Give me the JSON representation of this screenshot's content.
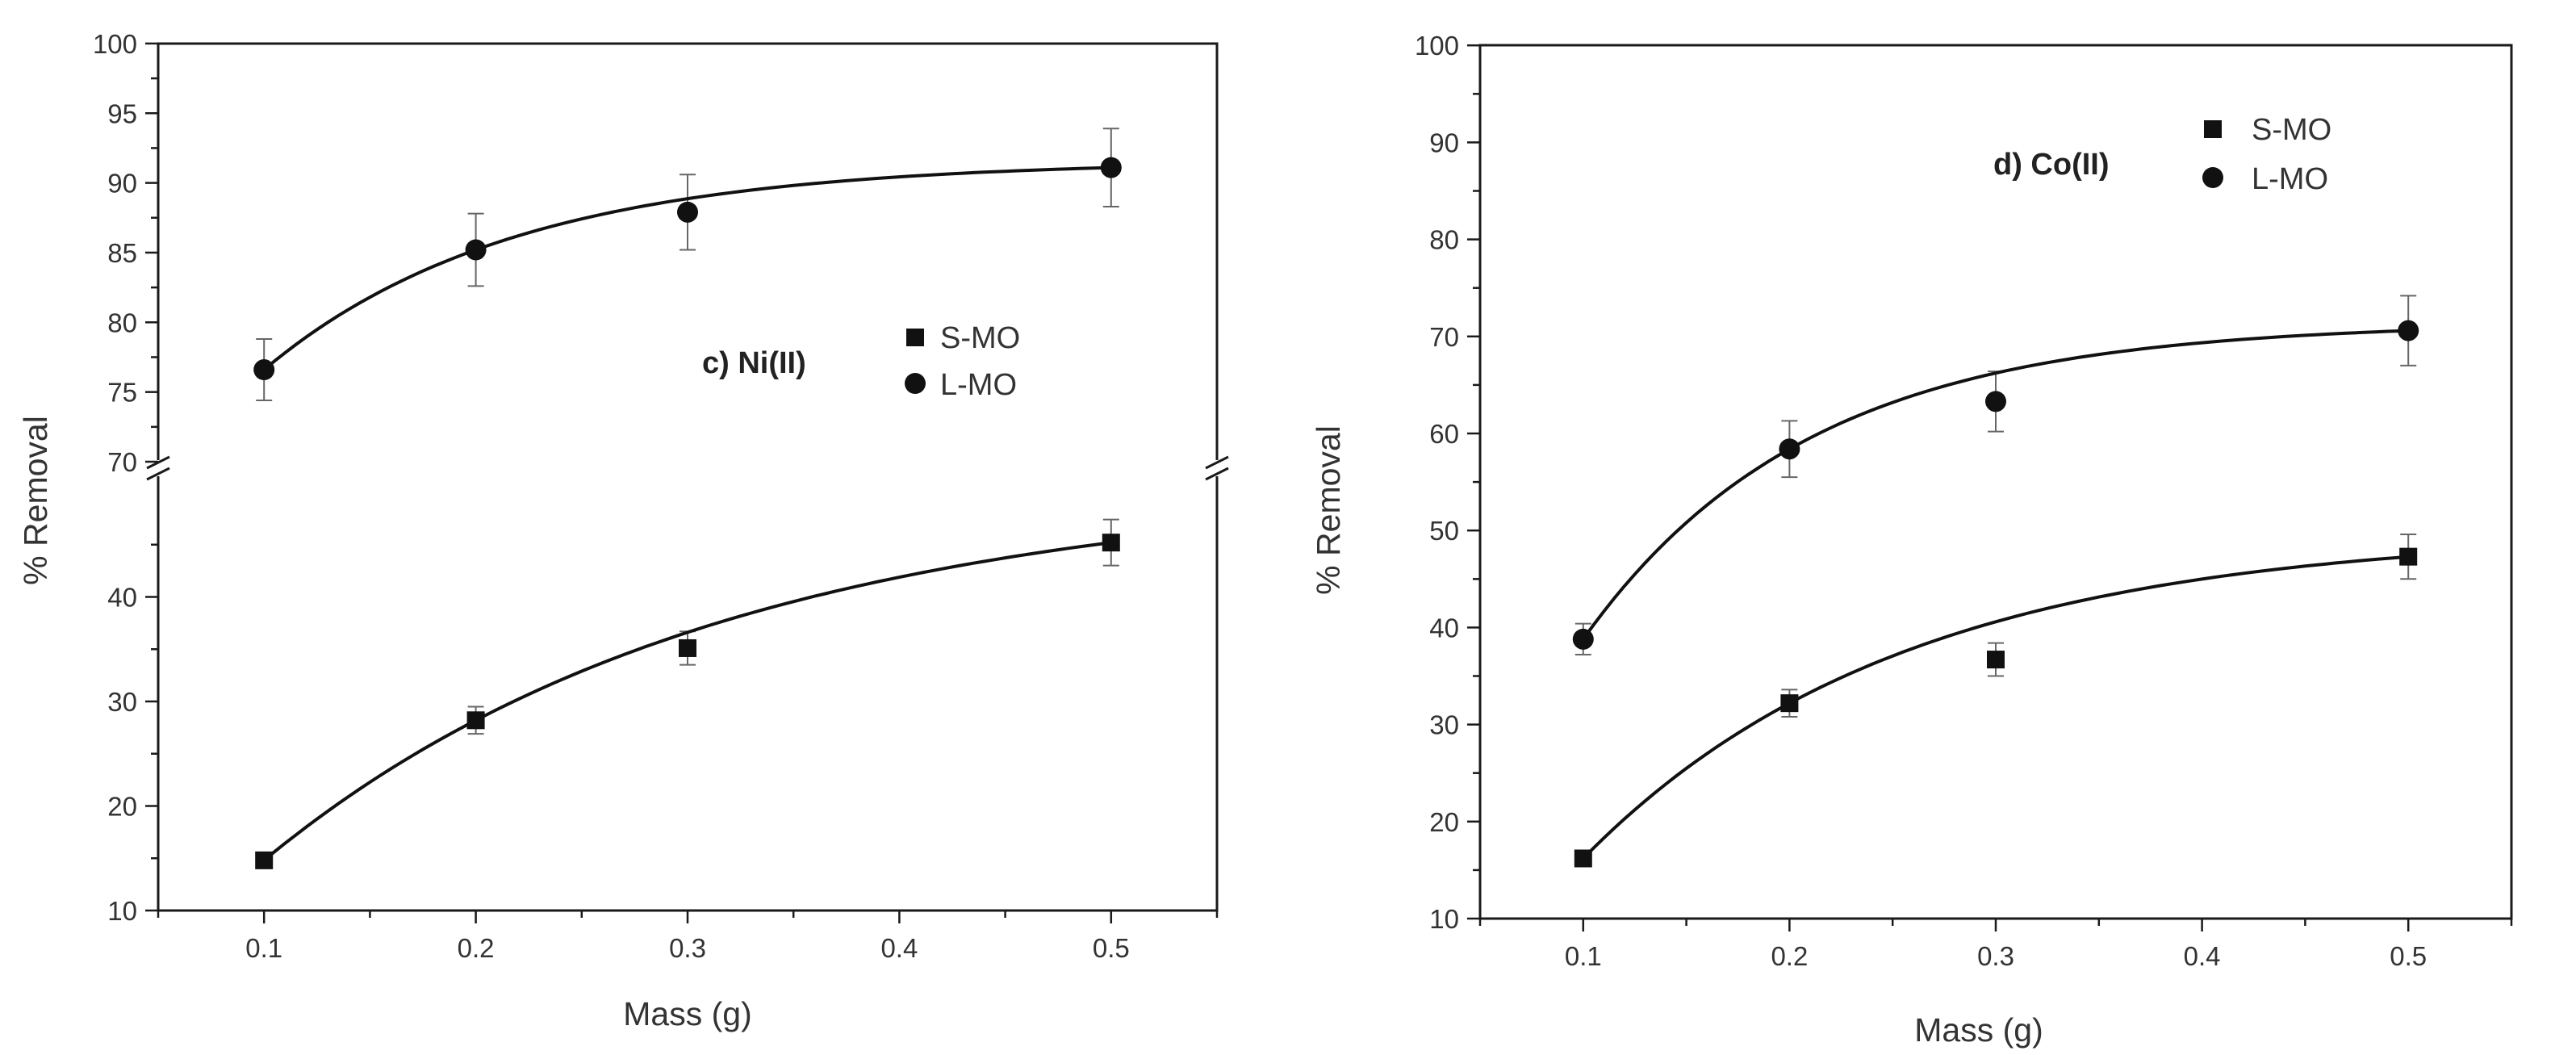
{
  "chart_data": [
    {
      "type": "scatter",
      "panel": "c",
      "annotation": "c) Ni(II)",
      "xlabel": "Mass (g)",
      "ylabel": "% Removal",
      "xlim": [
        0.05,
        0.55
      ],
      "y_break": {
        "lower_range": [
          10,
          50
        ],
        "upper_range": [
          70,
          100
        ]
      },
      "x_ticks": [
        "0.1",
        "0.2",
        "0.3",
        "0.4",
        "0.5"
      ],
      "y_ticks_lower": [
        "10",
        "20",
        "30",
        "40"
      ],
      "y_ticks_upper": [
        "70",
        "75",
        "80",
        "85",
        "90",
        "95",
        "100"
      ],
      "legend_position": "center-right",
      "series": [
        {
          "name": "S-MO",
          "marker": "square",
          "x": [
            0.1,
            0.2,
            0.3,
            0.5
          ],
          "values": [
            14.8,
            28.2,
            35.1,
            45.2
          ],
          "errors": [
            0.5,
            1.3,
            1.6,
            2.2
          ],
          "fit": "exponential"
        },
        {
          "name": "L-MO",
          "marker": "circle",
          "x": [
            0.1,
            0.2,
            0.3,
            0.5
          ],
          "values": [
            76.6,
            85.2,
            87.9,
            91.1
          ],
          "errors": [
            2.2,
            2.6,
            2.7,
            2.8
          ],
          "fit": "exponential"
        }
      ]
    },
    {
      "type": "scatter",
      "panel": "d",
      "annotation": "d) Co(II)",
      "xlabel": "Mass (g)",
      "ylabel": "% Removal",
      "xlim": [
        0.05,
        0.55
      ],
      "ylim": [
        10,
        100
      ],
      "x_ticks": [
        "0.1",
        "0.2",
        "0.3",
        "0.4",
        "0.5"
      ],
      "y_ticks": [
        "10",
        "20",
        "30",
        "40",
        "50",
        "60",
        "70",
        "80",
        "90",
        "100"
      ],
      "legend_position": "top-right",
      "series": [
        {
          "name": "S-MO",
          "marker": "square",
          "x": [
            0.1,
            0.2,
            0.3,
            0.5
          ],
          "values": [
            16.2,
            32.2,
            36.7,
            47.3
          ],
          "errors": [
            0.5,
            1.4,
            1.7,
            2.3
          ],
          "fit": "exponential"
        },
        {
          "name": "L-MO",
          "marker": "circle",
          "x": [
            0.1,
            0.2,
            0.3,
            0.5
          ],
          "values": [
            38.8,
            58.4,
            63.3,
            70.6
          ],
          "errors": [
            1.6,
            2.9,
            3.1,
            3.6
          ],
          "fit": "exponential"
        }
      ]
    }
  ]
}
